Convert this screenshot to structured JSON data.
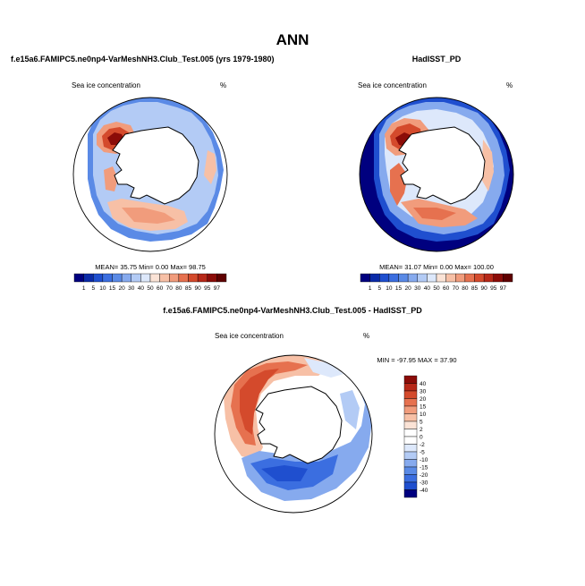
{
  "title": "ANN",
  "panels": [
    {
      "heading": "f.e15a6.FAMIPC5.ne0np4-VarMeshNH3.Club_Test.005 (yrs 1979-1980)",
      "variable": "Sea ice concentration",
      "units": "%",
      "stats": "MEAN= 35.75 Min= 0.00 Max= 98.75"
    },
    {
      "heading": "HadISST_PD",
      "variable": "Sea ice concentration",
      "units": "%",
      "stats": "MEAN= 31.07 Min= 0.00 Max= 100.00"
    },
    {
      "heading": "f.e15a6.FAMIPC5.ne0np4-VarMeshNH3.Club_Test.005 - HadISST_PD",
      "variable": "Sea ice concentration",
      "units": "%",
      "stats": "MIN = -97.95 MAX = 37.90"
    }
  ],
  "chart_data": [
    {
      "type": "heatmap",
      "map": "south-polar-stereographic",
      "title": "f.e15a6.FAMIPC5.ne0np4-VarMeshNH3.Club_Test.005 (yrs 1979-1980)",
      "variable": "Sea ice concentration",
      "units": "%",
      "mean": 35.75,
      "min": 0.0,
      "max": 98.75,
      "colorbar_levels": [
        1,
        5,
        10,
        15,
        20,
        30,
        40,
        50,
        60,
        70,
        80,
        85,
        90,
        95,
        97
      ],
      "colorbar_colors": [
        "#00007f",
        "#0b2ba8",
        "#1f4fcf",
        "#3b6ee0",
        "#5a8ae6",
        "#86aaee",
        "#b3cbf5",
        "#dde8fb",
        "#fbe3d6",
        "#f7c0a6",
        "#f19c7c",
        "#e6714f",
        "#d44a2c",
        "#b72818",
        "#8b0c08",
        "#5f0000"
      ],
      "legend": "bottom-horizontal"
    },
    {
      "type": "heatmap",
      "map": "south-polar-stereographic",
      "title": "HadISST_PD",
      "variable": "Sea ice concentration",
      "units": "%",
      "mean": 31.07,
      "min": 0.0,
      "max": 100.0,
      "colorbar_levels": [
        1,
        5,
        10,
        15,
        20,
        30,
        40,
        50,
        60,
        70,
        80,
        85,
        90,
        95,
        97
      ],
      "colorbar_colors": [
        "#00007f",
        "#0b2ba8",
        "#1f4fcf",
        "#3b6ee0",
        "#5a8ae6",
        "#86aaee",
        "#b3cbf5",
        "#dde8fb",
        "#fbe3d6",
        "#f7c0a6",
        "#f19c7c",
        "#e6714f",
        "#d44a2c",
        "#b72818",
        "#8b0c08",
        "#5f0000"
      ],
      "legend": "bottom-horizontal"
    },
    {
      "type": "heatmap",
      "map": "south-polar-stereographic",
      "title": "f.e15a6.FAMIPC5.ne0np4-VarMeshNH3.Club_Test.005 - HadISST_PD",
      "variable": "Sea ice concentration",
      "units": "%",
      "min": -97.95,
      "max": 37.9,
      "colorbar_levels": [
        40,
        30,
        20,
        15,
        10,
        5,
        2,
        0,
        -2,
        -5,
        -10,
        -15,
        -20,
        -30,
        -40
      ],
      "colorbar_colors": [
        "#8b0c08",
        "#b72818",
        "#d44a2c",
        "#e6714f",
        "#f19c7c",
        "#f7c0a6",
        "#fbe3d6",
        "#ffffff",
        "#ffffff",
        "#dde8fb",
        "#b3cbf5",
        "#86aaee",
        "#5a8ae6",
        "#3b6ee0",
        "#1f4fcf",
        "#00007f"
      ],
      "legend": "right-vertical"
    }
  ]
}
